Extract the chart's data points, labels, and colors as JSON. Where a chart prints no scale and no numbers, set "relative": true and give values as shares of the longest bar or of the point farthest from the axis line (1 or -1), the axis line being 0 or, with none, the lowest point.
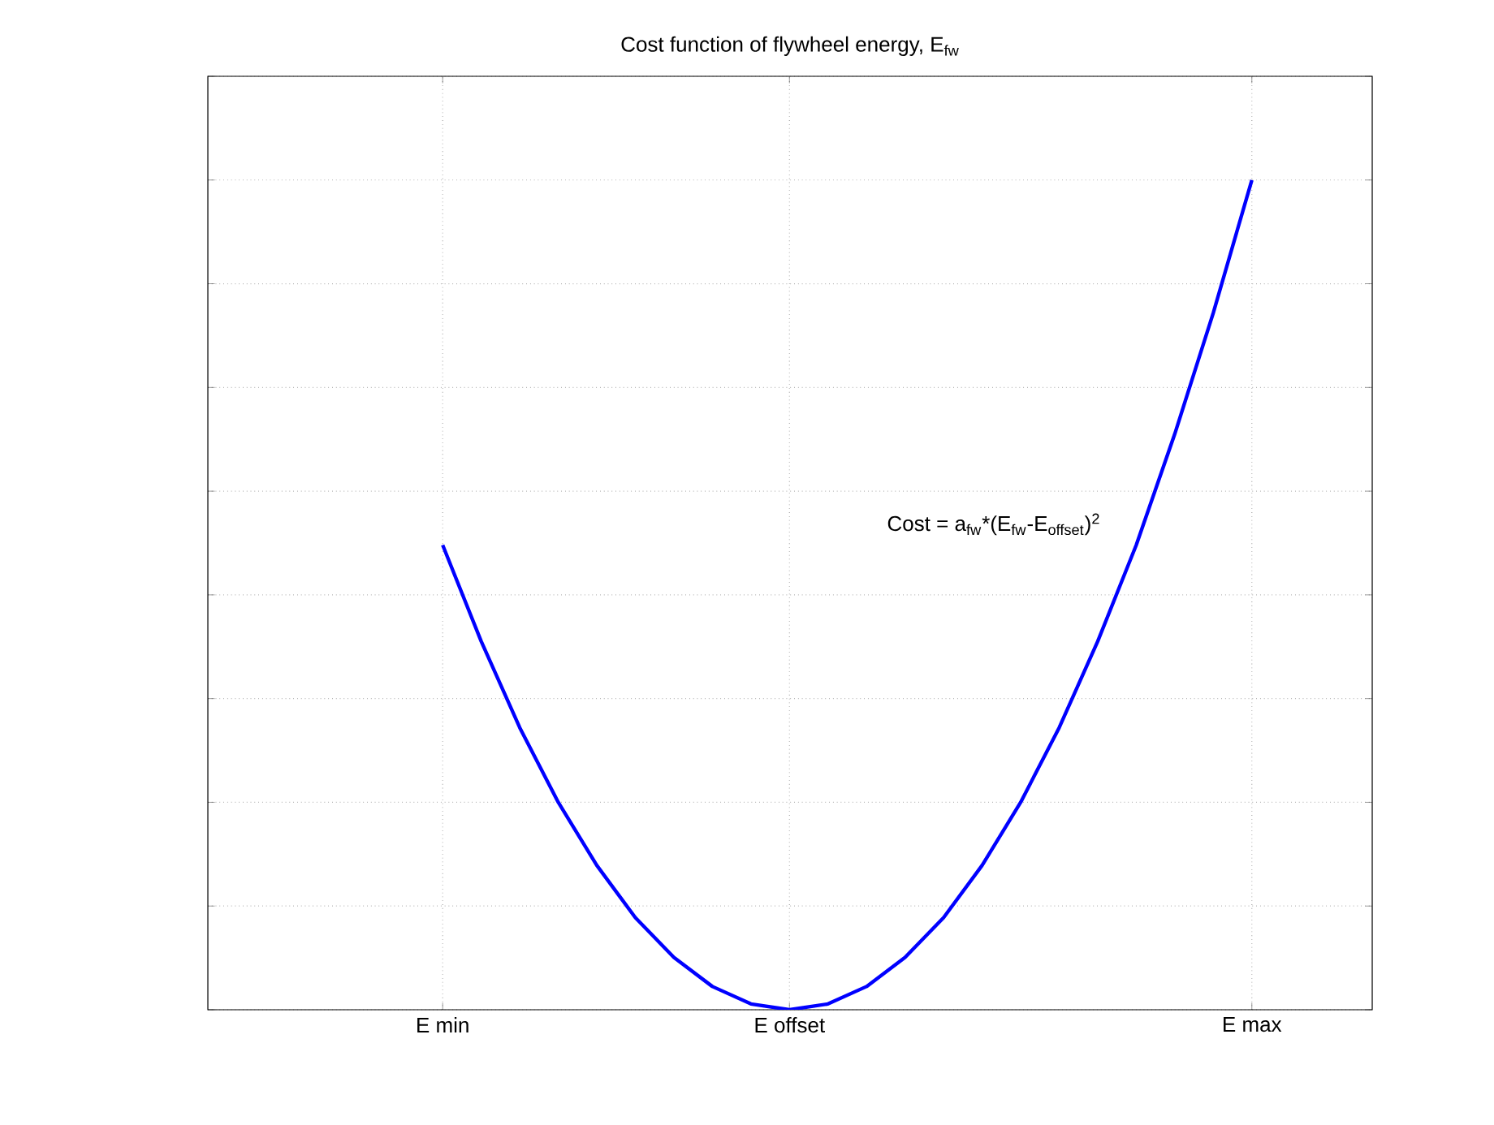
{
  "chart_data": {
    "type": "line",
    "title": "Cost function of flywheel energy, E$_{fw}$",
    "relative": true,
    "categories": [
      "E min",
      null,
      null,
      null,
      null,
      null,
      null,
      null,
      null,
      "E offset",
      null,
      null,
      null,
      null,
      null,
      null,
      null,
      null,
      null,
      null,
      null,
      "E max"
    ],
    "grid": true,
    "series": [
      {
        "color": "#0000ff",
        "values": [
          0.56,
          0.444,
          0.34,
          0.25,
          0.174,
          0.111,
          0.063,
          0.028,
          0.007,
          0,
          0.007,
          0.028,
          0.063,
          0.111,
          0.174,
          0.25,
          0.34,
          0.444,
          0.56,
          0.694,
          0.84,
          1.0
        ]
      }
    ],
    "annotations": [
      "Cost = a$_{fw}$*(E$_{fw}$-E$_{offset}$)$^{2}$"
    ]
  }
}
